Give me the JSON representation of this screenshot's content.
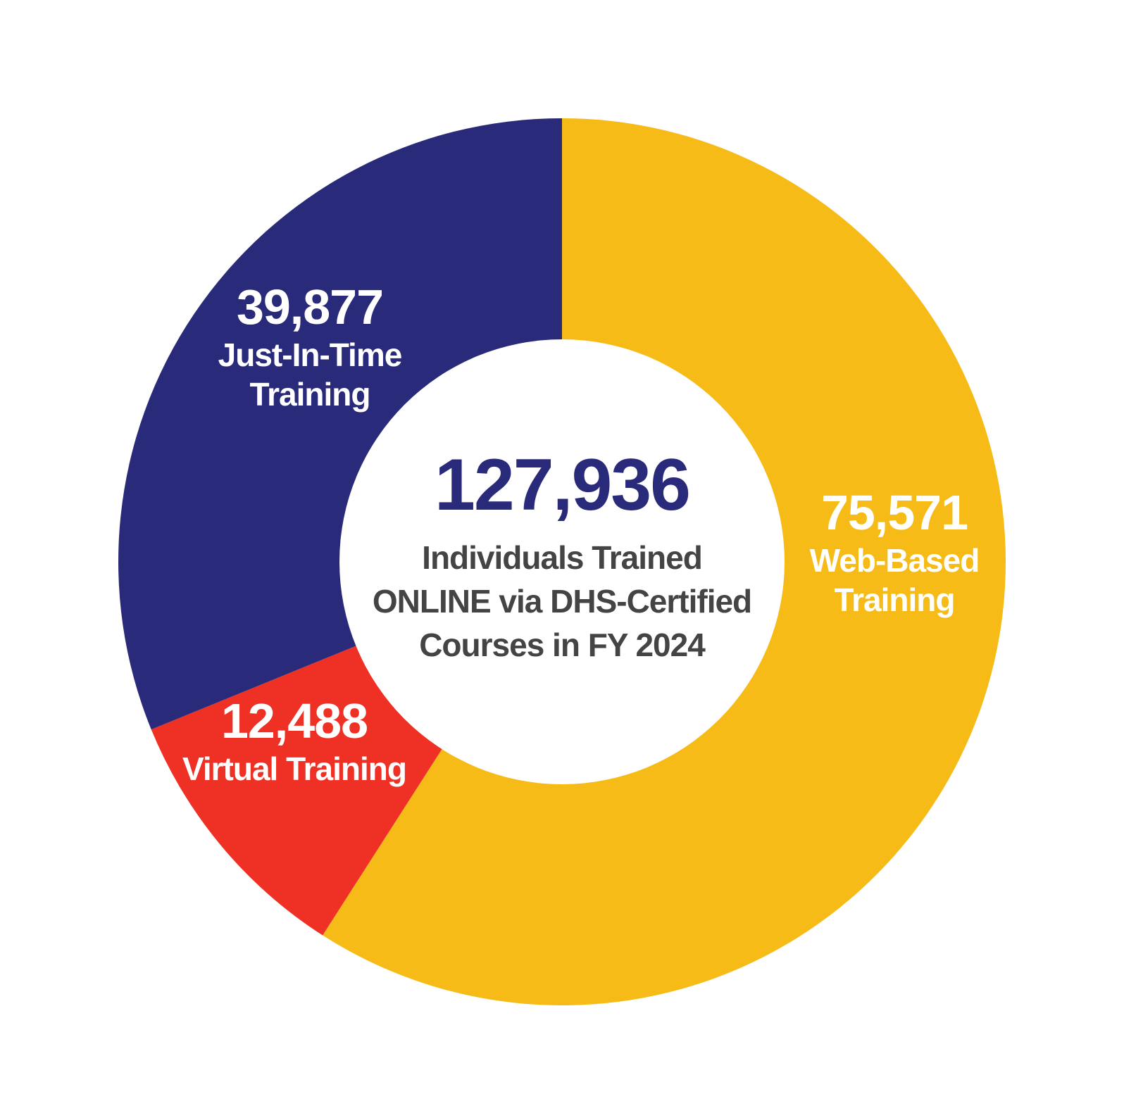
{
  "chart_data": {
    "type": "pie",
    "style": "donut",
    "total": {
      "value": "127,936",
      "label_lines": [
        "Individuals Trained",
        "ONLINE via DHS-Certified",
        "Courses in FY 2024"
      ]
    },
    "slices": [
      {
        "value": 75571,
        "value_label": "75,571",
        "label_lines": [
          "Web-Based",
          "Training"
        ],
        "color": "#F6BB17"
      },
      {
        "value": 12488,
        "value_label": "12,488",
        "label_lines": [
          "Virtual Training"
        ],
        "color": "#EE3124"
      },
      {
        "value": 39877,
        "value_label": "39,877",
        "label_lines": [
          "Just-In-Time",
          "Training"
        ],
        "color": "#2A2A7A"
      }
    ],
    "colors": {
      "center_value": "#2A2A7A",
      "center_label": "#444444",
      "slice_text": "#FFFFFF"
    }
  }
}
